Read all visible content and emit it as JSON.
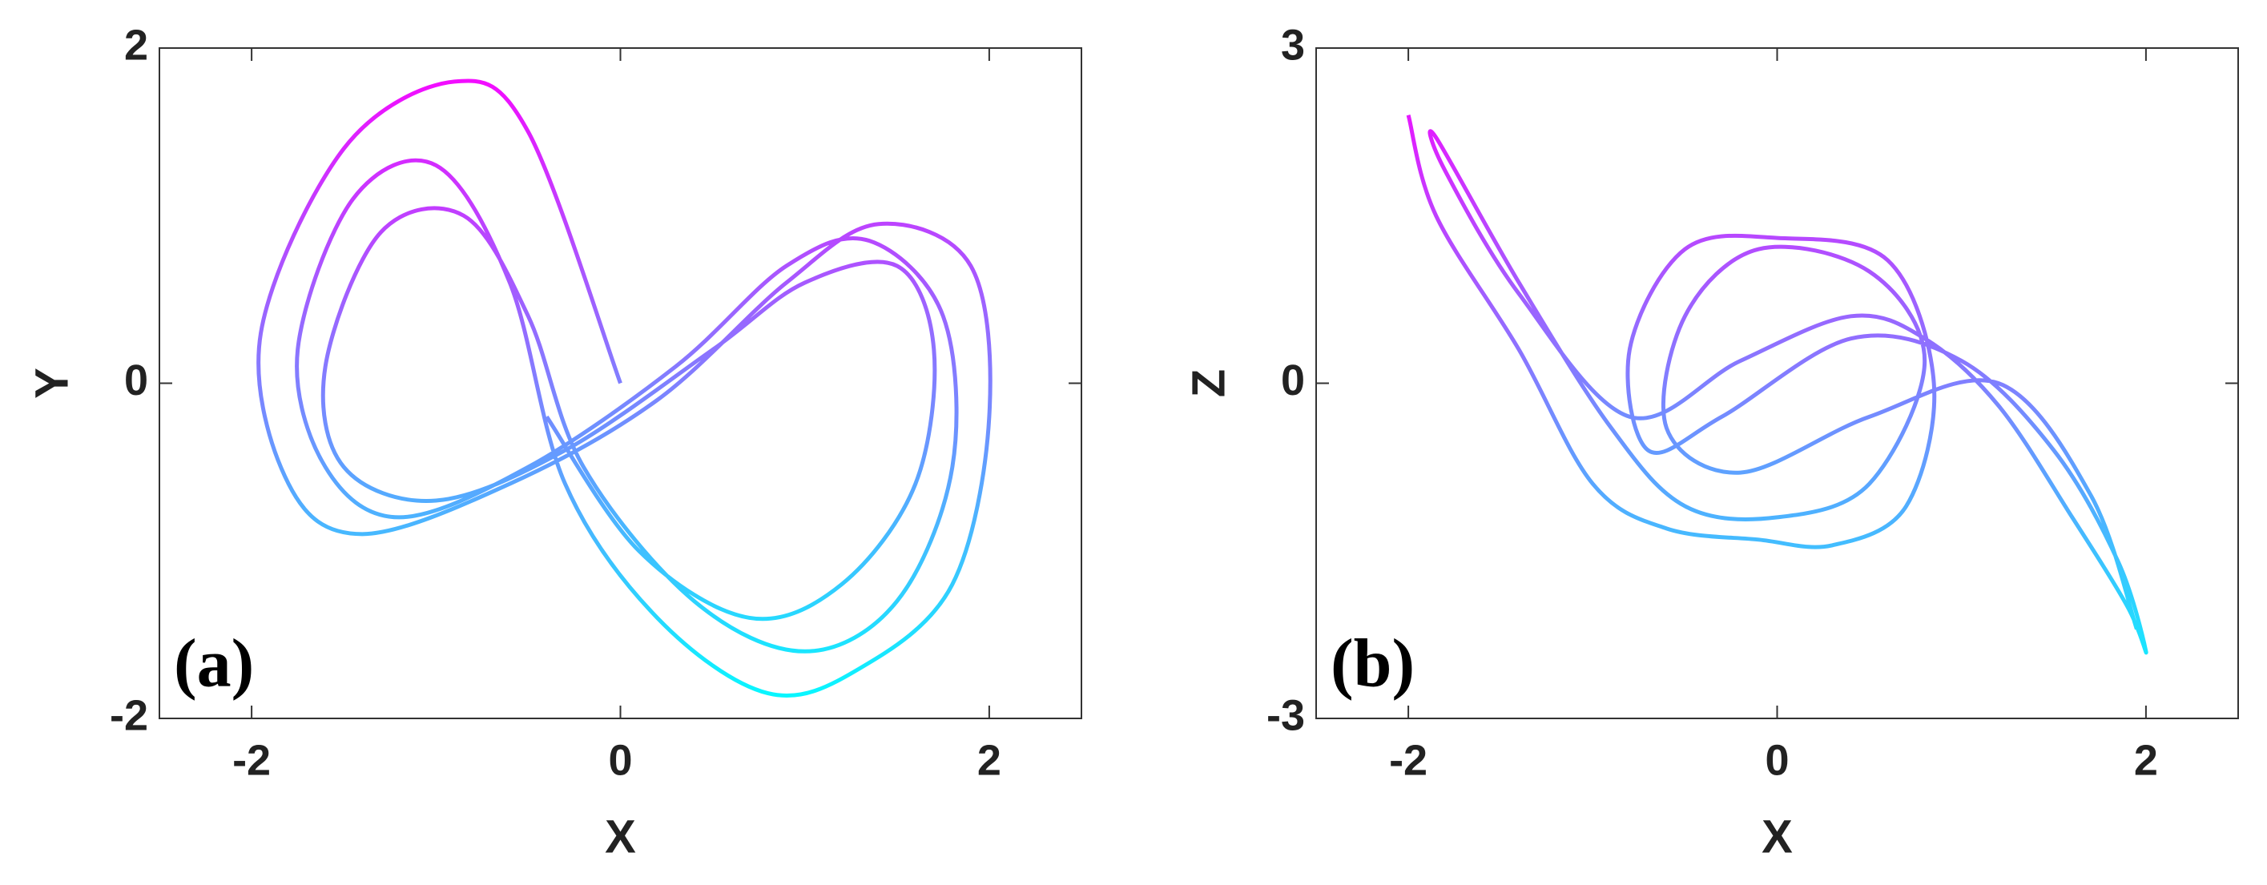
{
  "chart_data": [
    {
      "type": "line",
      "label": "(a)",
      "xlabel": "X",
      "ylabel": "Y",
      "xlim": [
        -2.5,
        2.5
      ],
      "ylim": [
        -2,
        2
      ],
      "xticks": [
        -2,
        0,
        2
      ],
      "yticks": [
        -2,
        0,
        2
      ],
      "colors": [
        "#ff00ff",
        "#00ffff"
      ],
      "series": [
        {
          "x": [
            0,
            -0.5,
            -0.9,
            -1.5,
            -1.95,
            -1.8,
            -1.4,
            -0.6,
            0.2,
            0.9,
            1.4,
            1.9,
            2.0,
            1.8,
            1.3,
            0.8,
            0.2,
            -0.3,
            -0.6,
            -1.0,
            -1.45,
            -1.75,
            -1.6,
            -1.2,
            -0.5,
            0.3,
            0.9,
            1.35,
            1.75,
            1.8,
            1.5,
            1.0,
            0.4,
            -0.2,
            -0.5,
            -0.85,
            -1.3,
            -1.6,
            -1.5,
            -1.0,
            -0.3,
            0.5,
            1.0,
            1.5,
            1.7,
            1.6,
            1.2,
            0.7,
            0.1,
            -0.4
          ],
          "y": [
            0,
            1.5,
            1.8,
            1.4,
            0.3,
            -0.6,
            -0.9,
            -0.6,
            -0.1,
            0.6,
            0.95,
            0.7,
            -0.2,
            -1.2,
            -1.7,
            -1.85,
            -1.4,
            -0.6,
            0.6,
            1.3,
            1.1,
            0.2,
            -0.5,
            -0.8,
            -0.5,
            0.1,
            0.7,
            0.85,
            0.4,
            -0.5,
            -1.3,
            -1.6,
            -1.3,
            -0.5,
            0.4,
            1.0,
            0.9,
            0.1,
            -0.5,
            -0.7,
            -0.4,
            0.2,
            0.6,
            0.7,
            0.2,
            -0.6,
            -1.2,
            -1.4,
            -1.0,
            -0.2
          ]
        }
      ]
    },
    {
      "type": "line",
      "label": "(b)",
      "xlabel": "X",
      "ylabel": "Z",
      "xlim": [
        -2.5,
        2.5
      ],
      "ylim": [
        -3,
        3
      ],
      "xticks": [
        -2,
        0,
        2
      ],
      "yticks": [
        -3,
        0,
        3
      ],
      "colors": [
        "#ff00ff",
        "#00ffff"
      ],
      "series": [
        {
          "x": [
            -2.0,
            -1.85,
            -1.4,
            -1.0,
            -0.6,
            -0.1,
            0.3,
            0.7,
            0.85,
            0.6,
            0.0,
            -0.5,
            -0.8,
            -0.7,
            -0.3,
            0.4,
            1.0,
            1.5,
            1.85,
            2.0,
            1.9,
            1.6,
            1.2,
            0.8,
            0.4,
            -0.2,
            -0.8,
            -1.4,
            -1.8,
            -1.85,
            -1.4,
            -0.9,
            -0.5,
            0.0,
            0.5,
            0.8,
            0.5,
            -0.1,
            -0.5,
            -0.6,
            -0.2,
            0.5,
            1.2,
            1.7,
            1.95
          ],
          "y": [
            2.4,
            1.5,
            0.3,
            -0.9,
            -1.3,
            -1.4,
            -1.45,
            -1.1,
            0.0,
            1.1,
            1.3,
            1.2,
            0.3,
            -0.6,
            -0.3,
            0.4,
            0.2,
            -0.6,
            -1.6,
            -2.4,
            -2.0,
            -1.2,
            -0.2,
            0.4,
            0.6,
            0.2,
            -0.3,
            0.8,
            1.9,
            2.2,
            0.9,
            -0.4,
            -1.1,
            -1.2,
            -0.9,
            0.2,
            1.0,
            1.2,
            0.6,
            -0.4,
            -0.8,
            -0.3,
            0.0,
            -1.0,
            -2.2
          ]
        }
      ]
    }
  ]
}
